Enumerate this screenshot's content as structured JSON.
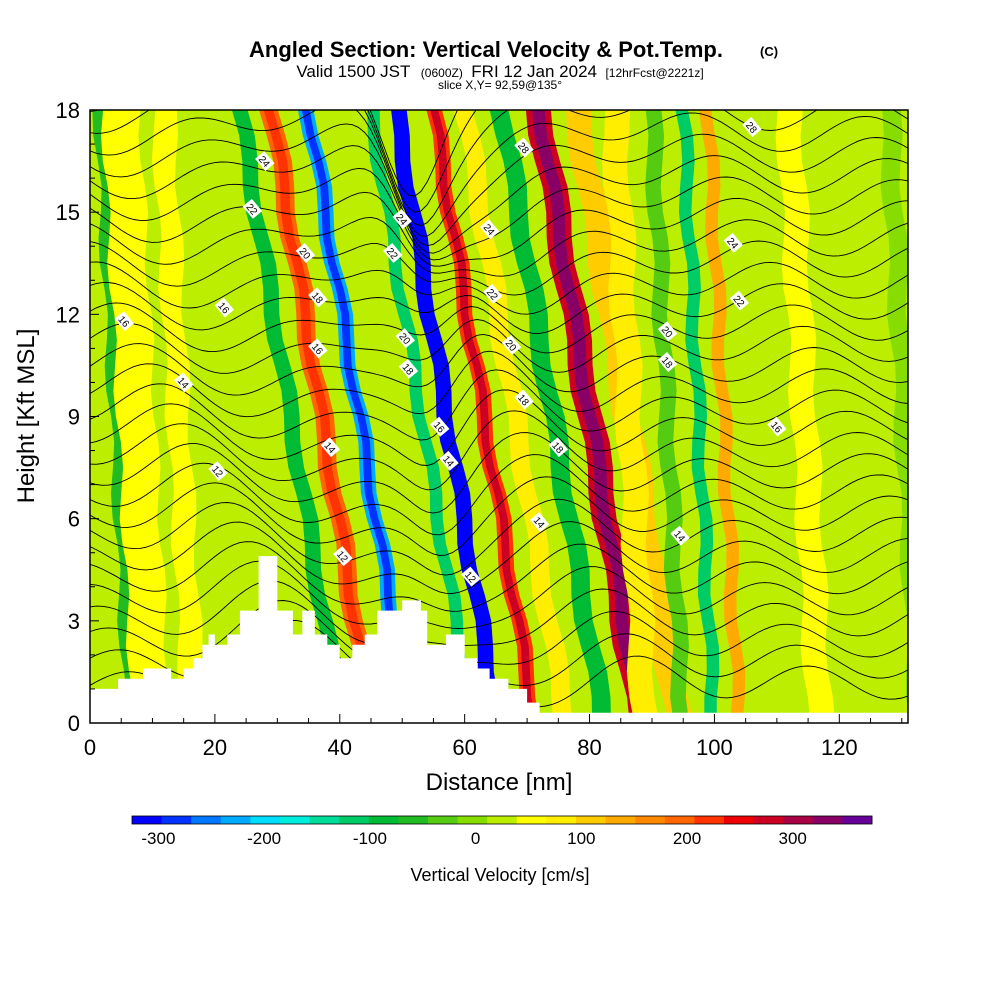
{
  "header": {
    "title": "Angled Section: Vertical Velocity & Pot.Temp.",
    "copyright": "(C)",
    "valid_prefix": "Valid 1500 JST",
    "utc": "(0600Z)",
    "valid_suffix": "FRI 12 Jan 2024",
    "forecast": "[12hrFcst@2221z]",
    "slice": "slice X,Y= 92,59@135°"
  },
  "chart_data": {
    "type": "heatmap",
    "xlabel": "Distance [nm]",
    "ylabel": "Height [Kft MSL]",
    "xlim": [
      0,
      131
    ],
    "ylim": [
      0,
      18
    ],
    "x_ticks": [
      0,
      20,
      40,
      60,
      80,
      100,
      120
    ],
    "y_ticks": [
      0,
      3,
      6,
      9,
      12,
      15,
      18
    ],
    "colorbar": {
      "label": "Vertical Velocity [cm/s]",
      "range": [
        -325,
        375
      ],
      "ticks": [
        -300,
        -200,
        -100,
        0,
        100,
        200,
        300
      ],
      "colors": [
        "#0000ff",
        "#0033ff",
        "#0077ff",
        "#00aaff",
        "#00ddff",
        "#00eedd",
        "#00dd99",
        "#00cc66",
        "#00bb33",
        "#22bb22",
        "#55cc11",
        "#88dd00",
        "#bbee00",
        "#ffff00",
        "#ffee00",
        "#ffcc00",
        "#ffaa00",
        "#ff8800",
        "#ff6600",
        "#ff3300",
        "#ee0000",
        "#cc0022",
        "#aa0044",
        "#880066",
        "#660099"
      ]
    },
    "velocity_bands": [
      {
        "x": 2,
        "w": 2.5,
        "value": -50
      },
      {
        "x": 5,
        "w": 6,
        "value": 40
      },
      {
        "x": 12,
        "w": 4,
        "value": 60
      },
      {
        "x": 16,
        "w": 5,
        "value": 30
      },
      {
        "x": 24,
        "w": 2.5,
        "value": -90
      },
      {
        "x": 29,
        "w": 3,
        "value": 180
      },
      {
        "x": 35,
        "w": 2.5,
        "value": -230
      },
      {
        "x": 40,
        "w": 3,
        "value": 30
      },
      {
        "x": 45,
        "w": 2,
        "value": -120
      },
      {
        "x": 49,
        "w": 2.5,
        "value": -320
      },
      {
        "x": 55,
        "w": 2.5,
        "value": 220
      },
      {
        "x": 60,
        "w": 3,
        "value": 70
      },
      {
        "x": 66,
        "w": 3,
        "value": -80
      },
      {
        "x": 72,
        "w": 4,
        "value": 270
      },
      {
        "x": 78,
        "w": 4,
        "value": 120
      },
      {
        "x": 84,
        "w": 4,
        "value": 70
      },
      {
        "x": 90,
        "w": 2.5,
        "value": -40
      },
      {
        "x": 95,
        "w": 2,
        "value": -110
      },
      {
        "x": 99,
        "w": 2,
        "value": 150
      },
      {
        "x": 104,
        "w": 4,
        "value": 30
      },
      {
        "x": 112,
        "w": 4,
        "value": 60
      },
      {
        "x": 122,
        "w": 4,
        "value": 30
      },
      {
        "x": 128,
        "w": 3,
        "value": 10
      }
    ],
    "terrain": [
      [
        0,
        1
      ],
      [
        4.5,
        1
      ],
      [
        4.5,
        1.3
      ],
      [
        8.5,
        1.3
      ],
      [
        8.5,
        1.6
      ],
      [
        13,
        1.6
      ],
      [
        13,
        1.3
      ],
      [
        15,
        1.3
      ],
      [
        15,
        1.6
      ],
      [
        16.5,
        1.6
      ],
      [
        16.5,
        1.9
      ],
      [
        18,
        1.9
      ],
      [
        18,
        2.3
      ],
      [
        19,
        2.3
      ],
      [
        19,
        2.6
      ],
      [
        20,
        2.6
      ],
      [
        20,
        2.3
      ],
      [
        22,
        2.3
      ],
      [
        22,
        2.6
      ],
      [
        24,
        2.6
      ],
      [
        24,
        3.3
      ],
      [
        27,
        3.3
      ],
      [
        27,
        4.9
      ],
      [
        30,
        4.9
      ],
      [
        30,
        3.3
      ],
      [
        32.5,
        3.3
      ],
      [
        32.5,
        2.6
      ],
      [
        34,
        2.6
      ],
      [
        34,
        3.3
      ],
      [
        36,
        3.3
      ],
      [
        36,
        2.6
      ],
      [
        38,
        2.6
      ],
      [
        38,
        2.3
      ],
      [
        40,
        2.3
      ],
      [
        40,
        1.9
      ],
      [
        42,
        1.9
      ],
      [
        42,
        2.3
      ],
      [
        44,
        2.3
      ],
      [
        44,
        2.6
      ],
      [
        46,
        2.6
      ],
      [
        46,
        3.3
      ],
      [
        50,
        3.3
      ],
      [
        50,
        3.6
      ],
      [
        53,
        3.6
      ],
      [
        53,
        3.3
      ],
      [
        54,
        3.3
      ],
      [
        54,
        2.3
      ],
      [
        57,
        2.3
      ],
      [
        57,
        2.6
      ],
      [
        60,
        2.6
      ],
      [
        60,
        1.9
      ],
      [
        62,
        1.9
      ],
      [
        62,
        1.6
      ],
      [
        64,
        1.6
      ],
      [
        64,
        1.3
      ],
      [
        67,
        1.3
      ],
      [
        67,
        1
      ],
      [
        70,
        1
      ],
      [
        70,
        0.6
      ],
      [
        72,
        0.6
      ],
      [
        72,
        0.3
      ],
      [
        131,
        0.3
      ],
      [
        131,
        0
      ],
      [
        0,
        0
      ]
    ],
    "theta_labels": [
      {
        "text": "16",
        "x": 5.5,
        "y": 11.8
      },
      {
        "text": "16",
        "x": 21.5,
        "y": 12.2
      },
      {
        "text": "14",
        "x": 15,
        "y": 10
      },
      {
        "text": "12",
        "x": 20.5,
        "y": 7.4
      },
      {
        "text": "24",
        "x": 28,
        "y": 16.5
      },
      {
        "text": "22",
        "x": 26,
        "y": 15.1
      },
      {
        "text": "20",
        "x": 34.5,
        "y": 13.8
      },
      {
        "text": "18",
        "x": 36.5,
        "y": 12.5
      },
      {
        "text": "16",
        "x": 36.5,
        "y": 11
      },
      {
        "text": "14",
        "x": 38.5,
        "y": 8.1
      },
      {
        "text": "12",
        "x": 40.5,
        "y": 4.9
      },
      {
        "text": "24",
        "x": 50,
        "y": 14.8
      },
      {
        "text": "22",
        "x": 48.5,
        "y": 13.8
      },
      {
        "text": "20",
        "x": 50.5,
        "y": 11.3
      },
      {
        "text": "18",
        "x": 51,
        "y": 10.4
      },
      {
        "text": "16",
        "x": 56,
        "y": 8.7
      },
      {
        "text": "14",
        "x": 57.5,
        "y": 7.7
      },
      {
        "text": "12",
        "x": 61,
        "y": 4.3
      },
      {
        "text": "28",
        "x": 69.5,
        "y": 16.9
      },
      {
        "text": "24",
        "x": 64,
        "y": 14.5
      },
      {
        "text": "22",
        "x": 64.5,
        "y": 12.6
      },
      {
        "text": "20",
        "x": 67.5,
        "y": 11.1
      },
      {
        "text": "18",
        "x": 69.5,
        "y": 9.5
      },
      {
        "text": "18",
        "x": 75,
        "y": 8.1
      },
      {
        "text": "14",
        "x": 72,
        "y": 5.9
      },
      {
        "text": "28",
        "x": 106,
        "y": 17.5
      },
      {
        "text": "24",
        "x": 103,
        "y": 14.1
      },
      {
        "text": "22",
        "x": 104,
        "y": 12.4
      },
      {
        "text": "20",
        "x": 92.5,
        "y": 11.5
      },
      {
        "text": "18",
        "x": 92.5,
        "y": 10.6
      },
      {
        "text": "16",
        "x": 110,
        "y": 8.7
      },
      {
        "text": "14",
        "x": 94.5,
        "y": 5.5
      }
    ]
  }
}
